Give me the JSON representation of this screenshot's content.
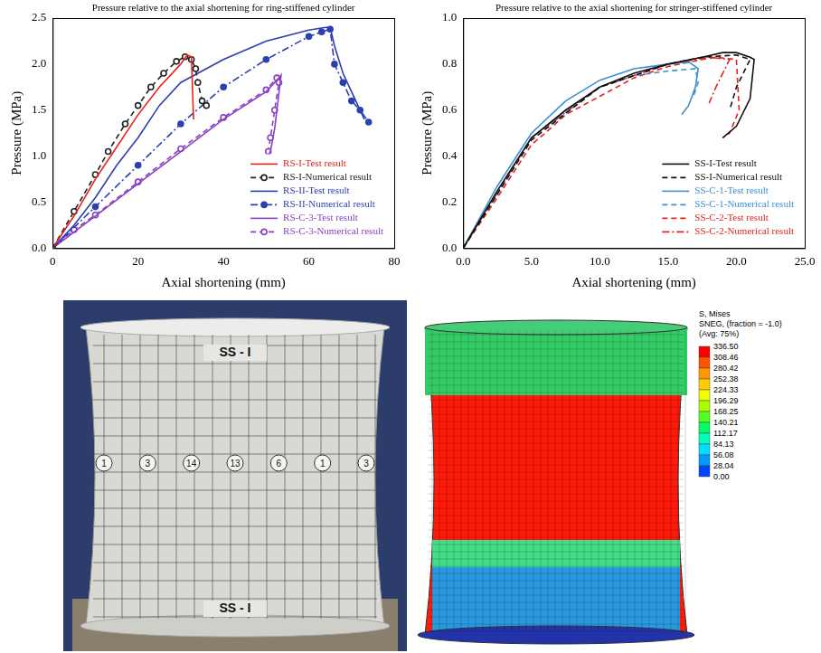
{
  "chart_data": [
    {
      "type": "line",
      "title": "Pressure relative to the axial shortening for ring-stiffened cylinder",
      "x_label": "Axial shortening (mm)",
      "y_label": "Pressure (MPa)",
      "xlim": [
        0,
        80
      ],
      "xticks": [
        0,
        20,
        40,
        60,
        80
      ],
      "ylim": [
        0,
        2.5
      ],
      "yticks": [
        {
          "value": 0,
          "label": "0.0"
        },
        {
          "value": 0.5,
          "label": "0.5"
        },
        {
          "value": 1,
          "label": "1.0"
        },
        {
          "value": 1.5,
          "label": "1.5"
        },
        {
          "value": 2,
          "label": "2.0"
        },
        {
          "value": 2.5,
          "label": "2.5"
        }
      ],
      "grid": false,
      "legend": "lower right",
      "series": [
        {
          "name": "RS-I-Test result",
          "color": "#e8211d",
          "line_style": "solid",
          "marker": "none",
          "x": [
            0,
            5,
            10,
            15,
            20,
            25,
            30,
            31.5,
            32.5,
            33
          ],
          "values": [
            0,
            0.35,
            0.75,
            1.1,
            1.45,
            1.75,
            2.0,
            2.1,
            2.08,
            1.4
          ]
        },
        {
          "name": "RS-I-Numerical result",
          "color": "#222222",
          "line_style": "dashed",
          "marker": "circle",
          "x": [
            0,
            5,
            10,
            13,
            17,
            20,
            23,
            26,
            29,
            31,
            32.5,
            33.5,
            34,
            35,
            36
          ],
          "values": [
            0,
            0.4,
            0.8,
            1.05,
            1.35,
            1.55,
            1.75,
            1.9,
            2.03,
            2.08,
            2.05,
            1.95,
            1.8,
            1.6,
            1.55
          ]
        },
        {
          "name": "RS-II-Test result",
          "color": "#2b3fb0",
          "line_style": "solid",
          "marker": "none",
          "x": [
            0,
            5,
            10,
            15,
            20,
            25,
            30,
            40,
            50,
            60,
            64,
            65,
            66,
            68,
            70,
            73
          ],
          "values": [
            0,
            0.25,
            0.55,
            0.9,
            1.2,
            1.55,
            1.8,
            2.05,
            2.25,
            2.37,
            2.4,
            2.4,
            2.2,
            1.9,
            1.7,
            1.4
          ]
        },
        {
          "name": "RS-II-Numerical result",
          "color": "#2b3fb0",
          "line_style": "dashdot",
          "marker": "dot",
          "x": [
            0,
            10,
            20,
            30,
            40,
            50,
            60,
            63,
            65,
            66,
            68,
            70,
            72,
            74
          ],
          "values": [
            0,
            0.45,
            0.9,
            1.35,
            1.75,
            2.05,
            2.3,
            2.35,
            2.38,
            2.0,
            1.8,
            1.6,
            1.5,
            1.37
          ]
        },
        {
          "name": "RS-C-3-Test result",
          "color": "#8a3fc4",
          "line_style": "solid",
          "marker": "none",
          "x": [
            0,
            10,
            20,
            30,
            40,
            50,
            53,
            53.5,
            52,
            51,
            50.5
          ],
          "values": [
            0,
            0.35,
            0.7,
            1.05,
            1.4,
            1.7,
            1.85,
            1.88,
            1.3,
            1.05,
            1.0
          ]
        },
        {
          "name": "RS-C-3-Numerical result",
          "color": "#8a3fc4",
          "line_style": "dashed",
          "marker": "circle",
          "x": [
            0,
            5,
            10,
            20,
            30,
            40,
            50,
            52.5,
            53,
            52,
            51,
            50.5
          ],
          "values": [
            0,
            0.2,
            0.36,
            0.72,
            1.08,
            1.42,
            1.72,
            1.85,
            1.8,
            1.5,
            1.2,
            1.05
          ]
        }
      ]
    },
    {
      "type": "line",
      "title": "Pressure relative to the axial shortening for stringer-stiffened cylinder",
      "x_label": "Axial shortening (mm)",
      "y_label": "Pressure (MPa)",
      "xlim": [
        0,
        25
      ],
      "xticks": [
        {
          "value": 0,
          "label": "0.0"
        },
        {
          "value": 5,
          "label": "5.0"
        },
        {
          "value": 10,
          "label": "10.0"
        },
        {
          "value": 15,
          "label": "15.0"
        },
        {
          "value": 20,
          "label": "20.0"
        },
        {
          "value": 25,
          "label": "25.0"
        }
      ],
      "ylim": [
        0,
        1
      ],
      "yticks": [
        {
          "value": 0,
          "label": "0.0"
        },
        {
          "value": 0.2,
          "label": "0.2"
        },
        {
          "value": 0.4,
          "label": "0.4"
        },
        {
          "value": 0.6,
          "label": "0.6"
        },
        {
          "value": 0.8,
          "label": "0.8"
        },
        {
          "value": 1,
          "label": "1.0"
        }
      ],
      "grid": false,
      "legend": "lower right",
      "series": [
        {
          "name": "SS-I-Test result",
          "color": "#111111",
          "line_style": "solid",
          "marker": "none",
          "x": [
            0,
            2.5,
            5,
            7.5,
            10,
            12.5,
            15,
            17.5,
            19,
            20,
            21,
            21.3,
            21,
            20,
            19
          ],
          "values": [
            0,
            0.25,
            0.48,
            0.6,
            0.7,
            0.76,
            0.8,
            0.83,
            0.85,
            0.85,
            0.83,
            0.82,
            0.65,
            0.53,
            0.48
          ]
        },
        {
          "name": "SS-I-Numerical result",
          "color": "#111111",
          "line_style": "dashed",
          "marker": "none",
          "x": [
            0,
            5,
            10,
            15,
            17.5,
            20,
            21,
            20,
            19.5
          ],
          "values": [
            0,
            0.47,
            0.7,
            0.8,
            0.83,
            0.84,
            0.82,
            0.7,
            0.6
          ]
        },
        {
          "name": "SS-C-1-Test result",
          "color": "#3a8fd6",
          "line_style": "solid",
          "marker": "none",
          "x": [
            0,
            2.5,
            5,
            7.5,
            10,
            12.5,
            15,
            16.5,
            17.2,
            17,
            16.5,
            16
          ],
          "values": [
            0,
            0.27,
            0.5,
            0.64,
            0.73,
            0.78,
            0.8,
            0.81,
            0.78,
            0.7,
            0.62,
            0.58
          ]
        },
        {
          "name": "SS-C-1-Numerical result",
          "color": "#3a8fd6",
          "line_style": "dashed",
          "marker": "none",
          "x": [
            0,
            5,
            10,
            12.5,
            15,
            17,
            17.2,
            16.8
          ],
          "values": [
            0,
            0.48,
            0.7,
            0.75,
            0.77,
            0.78,
            0.72,
            0.65
          ]
        },
        {
          "name": "SS-C-2-Test result",
          "color": "#e02424",
          "line_style": "dashed",
          "marker": "none",
          "x": [
            0,
            2.5,
            5,
            6,
            7.5,
            10,
            12.5,
            15,
            17.5,
            18.5,
            20,
            20.2,
            19.5,
            19
          ],
          "values": [
            0,
            0.22,
            0.45,
            0.5,
            0.58,
            0.66,
            0.74,
            0.79,
            0.82,
            0.83,
            0.82,
            0.6,
            0.5,
            0.48
          ]
        },
        {
          "name": "SS-C-2-Numerical result",
          "color": "#e02424",
          "line_style": "dashdot",
          "marker": "none",
          "x": [
            0,
            5,
            10,
            15,
            18,
            19.5,
            18.5,
            18
          ],
          "values": [
            0,
            0.48,
            0.7,
            0.8,
            0.83,
            0.82,
            0.7,
            0.63
          ]
        }
      ]
    }
  ],
  "photo": {
    "labels": [
      "SS - I",
      "SS - I"
    ],
    "markers": [
      "1",
      "3",
      "14",
      "13",
      "6",
      "1",
      "3"
    ]
  },
  "fe_model": {
    "legend_title": [
      "S, Mises",
      "SNEG, (fraction = -1.0)",
      "(Avg: 75%)"
    ],
    "colorbar_ticks": [
      {
        "value": 336.5,
        "label": "336.50"
      },
      {
        "value": 308.46,
        "label": "308.46"
      },
      {
        "value": 280.42,
        "label": "280.42"
      },
      {
        "value": 252.38,
        "label": "252.38"
      },
      {
        "value": 224.33,
        "label": "224.33"
      },
      {
        "value": 196.29,
        "label": "196.29"
      },
      {
        "value": 168.25,
        "label": "168.25"
      },
      {
        "value": 140.21,
        "label": "140.21"
      },
      {
        "value": 112.17,
        "label": "112.17"
      },
      {
        "value": 84.13,
        "label": "84.13"
      },
      {
        "value": 56.08,
        "label": "56.08"
      },
      {
        "value": 28.04,
        "label": "28.04"
      },
      {
        "value": 0,
        "label": "0.00"
      }
    ]
  }
}
